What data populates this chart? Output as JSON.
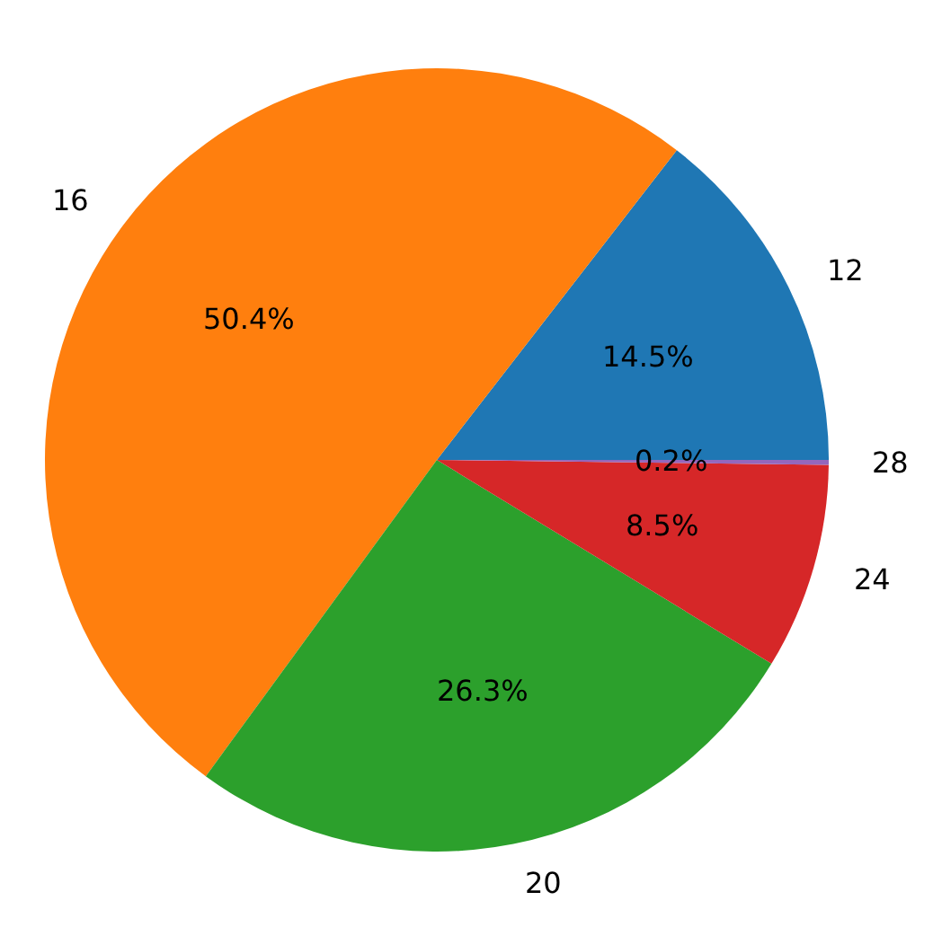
{
  "chart_data": {
    "type": "pie",
    "categories": [
      "12",
      "16",
      "20",
      "24",
      "28"
    ],
    "values": [
      14.5,
      50.4,
      26.3,
      8.5,
      0.2
    ],
    "value_labels": [
      "14.5%",
      "50.4%",
      "26.3%",
      "8.5%",
      "0.2%"
    ],
    "colors": [
      "#1f77b4",
      "#ff7f0e",
      "#2ca02c",
      "#d62728",
      "#9467bd"
    ]
  }
}
